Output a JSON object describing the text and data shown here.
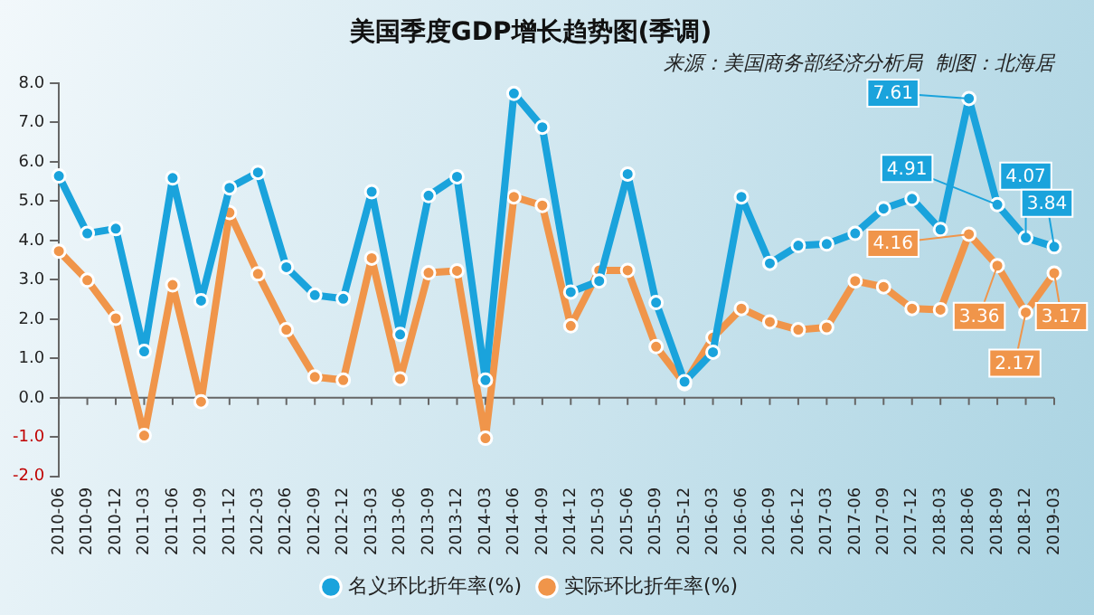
{
  "chart_data": {
    "type": "line",
    "title": "美国季度GDP增长趋势图(季调)",
    "subtitle": "来源：美国商务部经济分析局  制图：北海居",
    "categories": [
      "2010-06",
      "2010-09",
      "2010-12",
      "2011-03",
      "2011-06",
      "2011-09",
      "2011-12",
      "2012-03",
      "2012-06",
      "2012-09",
      "2012-12",
      "2013-03",
      "2013-06",
      "2013-09",
      "2013-12",
      "2014-03",
      "2014-06",
      "2014-09",
      "2014-12",
      "2015-03",
      "2015-06",
      "2015-09",
      "2015-12",
      "2016-03",
      "2016-06",
      "2016-09",
      "2016-12",
      "2017-03",
      "2017-06",
      "2017-09",
      "2017-12",
      "2018-03",
      "2018-06",
      "2018-09",
      "2018-12",
      "2019-03"
    ],
    "series": [
      {
        "name": "名义环比折年率(%)",
        "color": "#1aa3dc",
        "values": [
          5.64,
          4.18,
          4.3,
          1.18,
          5.59,
          2.47,
          5.34,
          5.73,
          3.32,
          2.61,
          2.52,
          5.24,
          1.61,
          5.14,
          5.62,
          0.45,
          7.74,
          6.88,
          2.69,
          2.97,
          5.69,
          2.42,
          0.41,
          1.16,
          5.11,
          3.42,
          3.87,
          3.91,
          4.18,
          4.81,
          5.06,
          4.28,
          7.61,
          4.91,
          4.07,
          3.84
        ],
        "value_labels": [
          null,
          null,
          null,
          null,
          null,
          null,
          null,
          null,
          null,
          null,
          null,
          null,
          null,
          null,
          null,
          null,
          null,
          null,
          null,
          null,
          null,
          null,
          null,
          null,
          null,
          null,
          null,
          null,
          null,
          null,
          null,
          null,
          "7.61",
          "4.91",
          "4.07",
          "3.84"
        ]
      },
      {
        "name": "实际环比折年率(%)",
        "color": "#f0954a",
        "values": [
          3.73,
          2.99,
          2.02,
          -0.96,
          2.87,
          -0.1,
          4.71,
          3.15,
          1.73,
          0.53,
          0.45,
          3.55,
          0.48,
          3.18,
          3.23,
          -1.03,
          5.11,
          4.89,
          1.83,
          3.24,
          3.24,
          1.3,
          0.36,
          1.53,
          2.27,
          1.93,
          1.73,
          1.79,
          2.97,
          2.82,
          2.27,
          2.24,
          4.16,
          3.36,
          2.17,
          3.17
        ],
        "value_labels": [
          null,
          null,
          null,
          null,
          null,
          null,
          null,
          null,
          null,
          null,
          null,
          null,
          null,
          null,
          null,
          null,
          null,
          null,
          null,
          null,
          null,
          null,
          null,
          null,
          null,
          null,
          null,
          null,
          null,
          null,
          null,
          null,
          "4.16",
          "3.36",
          "2.17",
          "3.17"
        ]
      }
    ],
    "ylim": [
      -2,
      8
    ],
    "yticks": [
      "-2.0",
      "-1.0",
      "0.0",
      "1.0",
      "2.0",
      "3.0",
      "4.0",
      "5.0",
      "6.0",
      "7.0",
      "8.0"
    ],
    "grid": false,
    "legend": "bottom",
    "marker": "circle",
    "line_style": "solid"
  }
}
